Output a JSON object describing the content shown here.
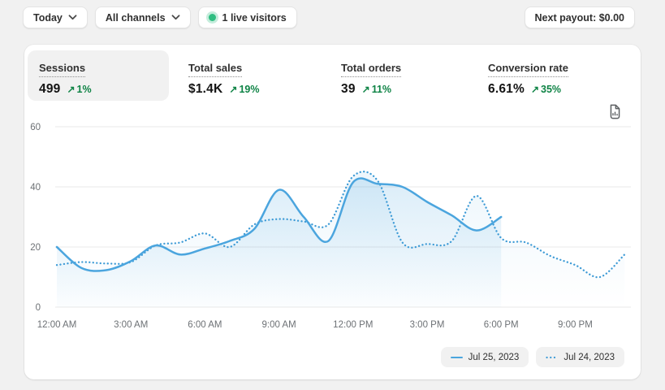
{
  "toolbar": {
    "date_range": "Today",
    "channels": "All channels",
    "live_visitors": "1 live visitors",
    "next_payout": "Next payout: $0.00"
  },
  "icons": {
    "trend_up": "↗"
  },
  "metrics": [
    {
      "label": "Sessions",
      "value": "499",
      "delta": "1%",
      "direction": "up",
      "active": true
    },
    {
      "label": "Total sales",
      "value": "$1.4K",
      "delta": "19%",
      "direction": "up",
      "active": false
    },
    {
      "label": "Total orders",
      "value": "39",
      "delta": "11%",
      "direction": "up",
      "active": false
    },
    {
      "label": "Conversion rate",
      "value": "6.61%",
      "delta": "35%",
      "direction": "up",
      "active": false
    }
  ],
  "colors": {
    "page_bg": "#f1f1f1",
    "card_bg": "#ffffff",
    "text": "#303030",
    "axis_text": "#6d7175",
    "grid": "#e8e8e8",
    "success_green": "#0e8345",
    "live_dot_green": "#2fbe81",
    "line_blue_solid": "#4ba5de",
    "line_blue_dotted": "#3e9bd6"
  },
  "chart_data": {
    "type": "line",
    "x_unit": "hour of day",
    "x_tick_hours": [
      0,
      3,
      6,
      9,
      12,
      15,
      18,
      21
    ],
    "x_tick_labels": [
      "12:00 AM",
      "3:00 AM",
      "6:00 AM",
      "9:00 AM",
      "12:00 PM",
      "3:00 PM",
      "6:00 PM",
      "9:00 PM"
    ],
    "y_ticks": [
      0,
      20,
      40,
      60
    ],
    "ylim": [
      0,
      60
    ],
    "grid": true,
    "legend_position": "bottom-right",
    "series": [
      {
        "name": "Jul 25, 2023",
        "style": "solid",
        "color": "#4ba5de",
        "hours": [
          0,
          1,
          2,
          3,
          4,
          5,
          6,
          7,
          8,
          9,
          10,
          11,
          12,
          13,
          14,
          15,
          16,
          17,
          18
        ],
        "values": [
          20,
          13,
          12.3,
          15.3,
          20.5,
          17.5,
          19.5,
          22,
          26,
          39,
          30,
          22,
          41.5,
          41,
          40,
          35,
          30.5,
          25.5,
          30
        ]
      },
      {
        "name": "Jul 24, 2023",
        "style": "dotted",
        "color": "#3e9bd6",
        "hours": [
          0,
          1,
          2,
          3,
          4,
          5,
          6,
          7,
          8,
          9,
          10,
          11,
          12,
          13,
          14,
          15,
          16,
          17,
          18,
          19,
          20,
          21,
          22,
          23
        ],
        "values": [
          14,
          15,
          14.5,
          15,
          20.5,
          21.5,
          24.5,
          20,
          27.5,
          29.3,
          28.5,
          27.5,
          43.5,
          42,
          21.5,
          21,
          22,
          37,
          23,
          21.5,
          17,
          14,
          10,
          17.5
        ]
      }
    ]
  }
}
